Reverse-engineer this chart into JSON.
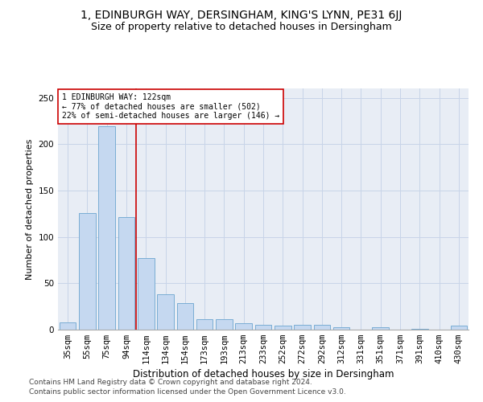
{
  "title1": "1, EDINBURGH WAY, DERSINGHAM, KING'S LYNN, PE31 6JJ",
  "title2": "Size of property relative to detached houses in Dersingham",
  "xlabel": "Distribution of detached houses by size in Dersingham",
  "ylabel": "Number of detached properties",
  "categories": [
    "35sqm",
    "55sqm",
    "75sqm",
    "94sqm",
    "114sqm",
    "134sqm",
    "154sqm",
    "173sqm",
    "193sqm",
    "213sqm",
    "233sqm",
    "252sqm",
    "272sqm",
    "292sqm",
    "312sqm",
    "331sqm",
    "351sqm",
    "371sqm",
    "391sqm",
    "410sqm",
    "430sqm"
  ],
  "values": [
    8,
    126,
    219,
    121,
    77,
    38,
    29,
    11,
    11,
    7,
    5,
    4,
    5,
    5,
    3,
    0,
    3,
    0,
    1,
    0,
    4
  ],
  "bar_color": "#c5d8f0",
  "bar_edge_color": "#7aadd4",
  "grid_color": "#c8d4e8",
  "vline_color": "#cc0000",
  "annotation_text": "1 EDINBURGH WAY: 122sqm\n← 77% of detached houses are smaller (502)\n22% of semi-detached houses are larger (146) →",
  "annotation_box_color": "#ffffff",
  "annotation_box_edge": "#cc0000",
  "footer1": "Contains HM Land Registry data © Crown copyright and database right 2024.",
  "footer2": "Contains public sector information licensed under the Open Government Licence v3.0.",
  "ylim": [
    0,
    260
  ],
  "bg_color": "#e8edf5",
  "title1_fontsize": 10,
  "title2_fontsize": 9,
  "xlabel_fontsize": 8.5,
  "ylabel_fontsize": 8,
  "tick_fontsize": 7.5,
  "footer_fontsize": 6.5
}
